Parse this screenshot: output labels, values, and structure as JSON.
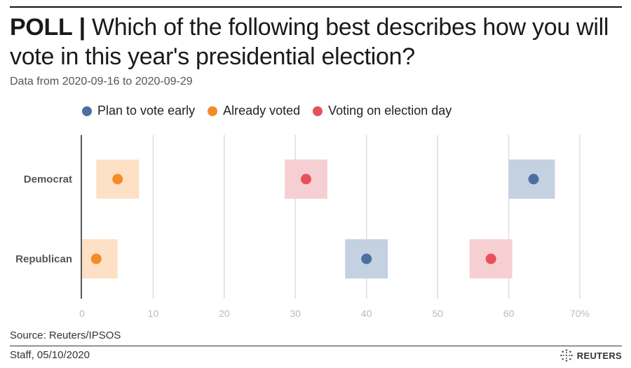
{
  "header": {
    "prefix": "POLL",
    "separator": "|",
    "title": "Which of the following best describes how you will vote in this year's presidential election?",
    "subtitle": "Data from 2020-09-16 to 2020-09-29"
  },
  "legend": [
    {
      "label": "Plan to vote early",
      "color": "#4a6fa0"
    },
    {
      "label": "Already voted",
      "color": "#f28c28"
    },
    {
      "label": "Voting on election day",
      "color": "#e8505b"
    }
  ],
  "chart_data": {
    "type": "scatter",
    "categories": [
      "Democrat",
      "Republican"
    ],
    "series": [
      {
        "name": "Plan to vote early",
        "color": "#4a6fa0",
        "band_color": "#c3d1e1",
        "values": [
          63.5,
          40
        ],
        "ci_low": [
          60,
          37
        ],
        "ci_high": [
          66.5,
          43
        ]
      },
      {
        "name": "Already voted",
        "color": "#f28c28",
        "band_color": "#fde0c5",
        "values": [
          5,
          2
        ],
        "ci_low": [
          2,
          0
        ],
        "ci_high": [
          8,
          5
        ]
      },
      {
        "name": "Voting on election day",
        "color": "#e8505b",
        "band_color": "#f6cfd2",
        "values": [
          31.5,
          57.5
        ],
        "ci_low": [
          28.5,
          54.5
        ],
        "ci_high": [
          34.5,
          60.5
        ]
      }
    ],
    "xlim": [
      0,
      70
    ],
    "xticks": [
      "0",
      "10",
      "20",
      "30",
      "40",
      "50",
      "60",
      "70%"
    ],
    "xtick_values": [
      0,
      10,
      20,
      30,
      40,
      50,
      60,
      70
    ],
    "grid": true
  },
  "footer": {
    "source": "Source: Reuters/IPSOS",
    "credit": "Staff,  05/10/2020",
    "logo_text": "REUTERS"
  }
}
